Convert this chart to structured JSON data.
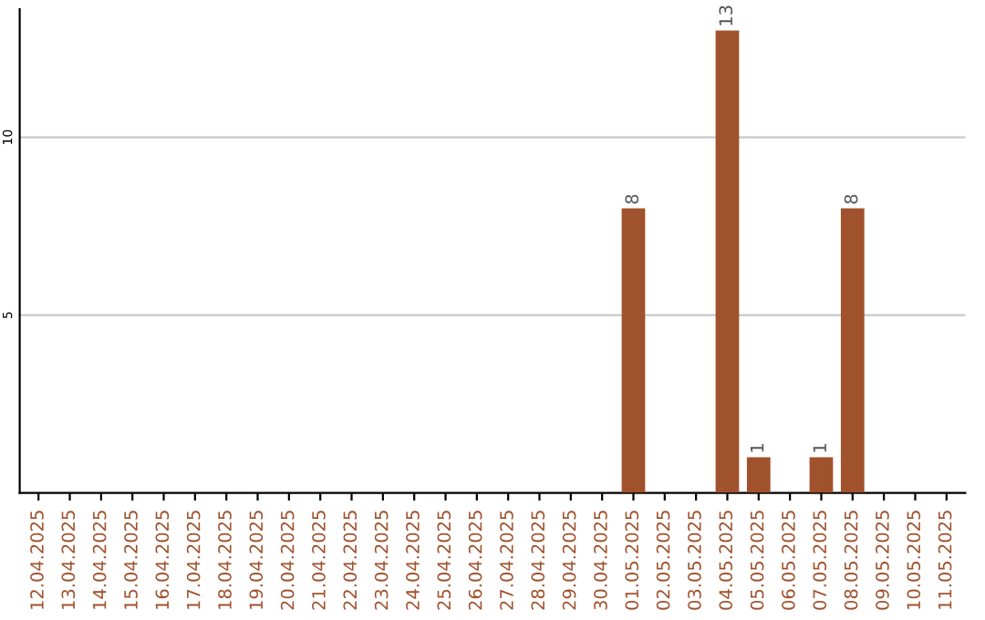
{
  "chart_data": {
    "type": "bar",
    "categories": [
      "12.04.2025",
      "13.04.2025",
      "14.04.2025",
      "15.04.2025",
      "16.04.2025",
      "17.04.2025",
      "18.04.2025",
      "19.04.2025",
      "20.04.2025",
      "21.04.2025",
      "22.04.2025",
      "23.04.2025",
      "24.04.2025",
      "25.04.2025",
      "26.04.2025",
      "27.04.2025",
      "28.04.2025",
      "29.04.2025",
      "30.04.2025",
      "01.05.2025",
      "02.05.2025",
      "03.05.2025",
      "04.05.2025",
      "05.05.2025",
      "06.05.2025",
      "07.05.2025",
      "08.05.2025",
      "09.05.2025",
      "10.05.2025",
      "11.05.2025"
    ],
    "values": [
      0,
      0,
      0,
      0,
      0,
      0,
      0,
      0,
      0,
      0,
      0,
      0,
      0,
      0,
      0,
      0,
      0,
      0,
      0,
      8,
      0,
      0,
      13,
      1,
      0,
      1,
      8,
      0,
      0,
      0
    ],
    "value_labels": [
      null,
      null,
      null,
      null,
      null,
      null,
      null,
      null,
      null,
      null,
      null,
      null,
      null,
      null,
      null,
      null,
      null,
      null,
      null,
      "8",
      null,
      null,
      "13",
      "1",
      null,
      "1",
      "8",
      null,
      null,
      null
    ],
    "color": "#a0522d",
    "ylim": [
      0,
      13.6
    ],
    "yticks": [
      5,
      10
    ],
    "grid": "y"
  }
}
